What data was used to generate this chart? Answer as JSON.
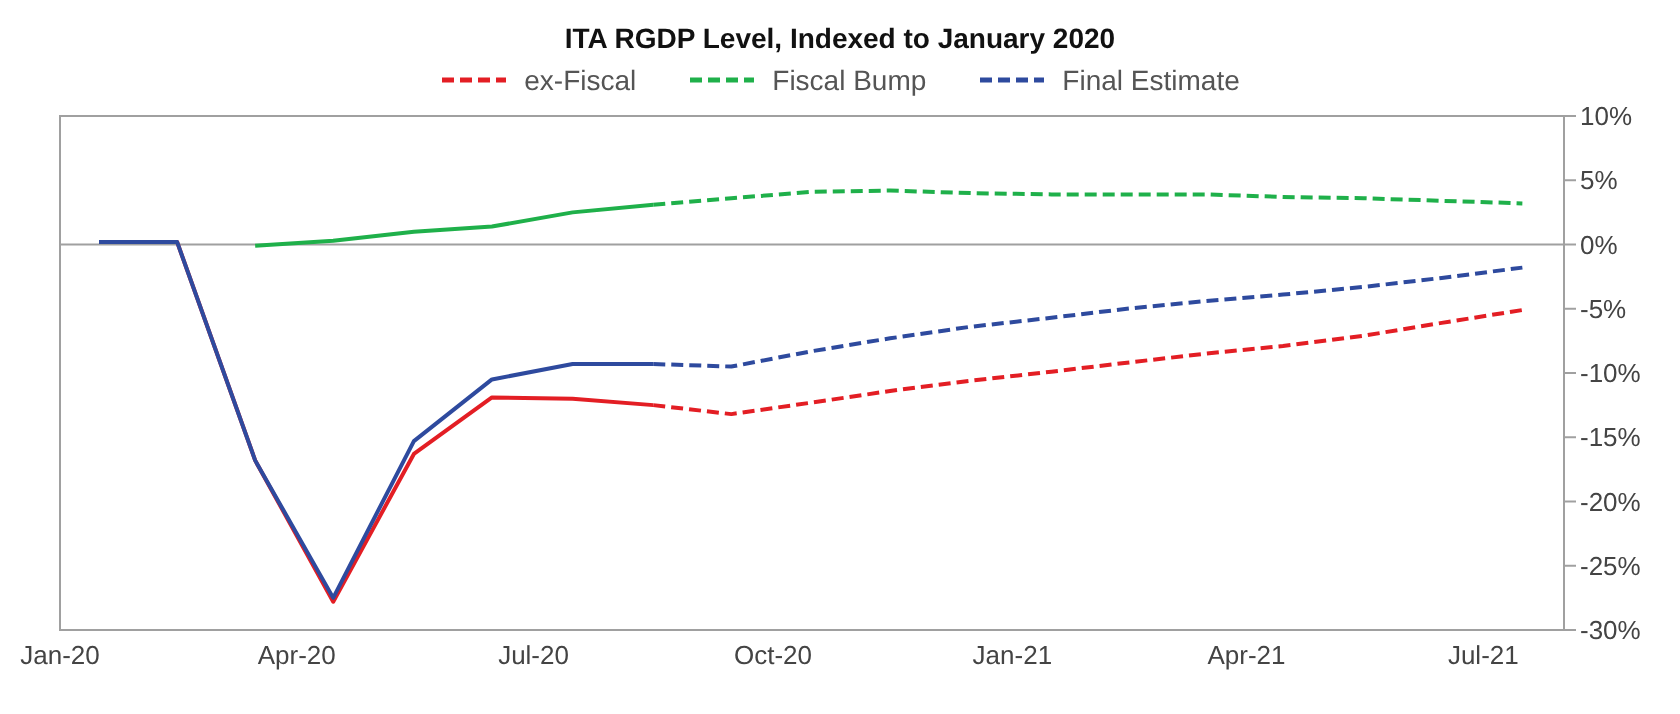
{
  "chart_data": {
    "type": "line",
    "title": "ITA RGDP Level, Indexed to January 2020",
    "x": [
      "2020-01-16",
      "2020-02-15",
      "2020-03-16",
      "2020-04-15",
      "2020-05-16",
      "2020-06-15",
      "2020-07-16",
      "2020-08-16",
      "2020-09-15",
      "2020-10-16",
      "2020-11-15",
      "2020-12-16",
      "2021-01-16",
      "2021-02-14",
      "2021-03-16",
      "2021-04-15",
      "2021-05-16",
      "2021-06-15",
      "2021-07-16"
    ],
    "xlim": [
      "2020-01-01",
      "2021-08-01"
    ],
    "xticks": [
      {
        "value": "2020-01-01",
        "label": "Jan-20"
      },
      {
        "value": "2020-04-01",
        "label": "Apr-20"
      },
      {
        "value": "2020-07-01",
        "label": "Jul-20"
      },
      {
        "value": "2020-10-01",
        "label": "Oct-20"
      },
      {
        "value": "2021-01-01",
        "label": "Jan-21"
      },
      {
        "value": "2021-04-01",
        "label": "Apr-21"
      },
      {
        "value": "2021-07-01",
        "label": "Jul-21"
      }
    ],
    "ylim": [
      -30,
      10
    ],
    "yticks": [
      {
        "value": -30,
        "label": "-30%"
      },
      {
        "value": -25,
        "label": "-25%"
      },
      {
        "value": -20,
        "label": "-20%"
      },
      {
        "value": -15,
        "label": "-15%"
      },
      {
        "value": -10,
        "label": "-10%"
      },
      {
        "value": -5,
        "label": "-5%"
      },
      {
        "value": 0,
        "label": "0%"
      },
      {
        "value": 5,
        "label": "5%"
      },
      {
        "value": 10,
        "label": "10%"
      }
    ],
    "series": [
      {
        "color": "#e31e24",
        "line_style": "solid",
        "values": [
          0.2,
          0.2,
          -16.8,
          -27.8,
          -16.3,
          -11.9,
          -12.0,
          -12.5,
          null,
          null,
          null,
          null,
          null,
          null,
          null,
          null,
          null,
          null,
          null
        ]
      },
      {
        "color": "#1fb04a",
        "line_style": "solid",
        "values": [
          null,
          null,
          -0.1,
          0.3,
          1.0,
          1.4,
          2.5,
          3.1,
          null,
          null,
          null,
          null,
          null,
          null,
          null,
          null,
          null,
          null,
          null
        ]
      },
      {
        "color": "#2e4a9e",
        "line_style": "solid",
        "values": [
          0.2,
          0.2,
          -16.8,
          -27.5,
          -15.3,
          -10.5,
          -9.3,
          -9.3,
          null,
          null,
          null,
          null,
          null,
          null,
          null,
          null,
          null,
          null,
          null
        ]
      },
      {
        "name": "ex-Fiscal",
        "color": "#e31e24",
        "line_style": "dashed",
        "values": [
          null,
          null,
          null,
          null,
          null,
          null,
          null,
          -12.5,
          -13.2,
          -12.3,
          -11.4,
          -10.6,
          -9.9,
          -9.2,
          -8.5,
          -7.9,
          -7.1,
          -6.1,
          -5.1
        ]
      },
      {
        "name": "Fiscal Bump",
        "color": "#1fb04a",
        "line_style": "dashed",
        "values": [
          null,
          null,
          null,
          null,
          null,
          null,
          null,
          3.1,
          3.6,
          4.1,
          4.2,
          4.0,
          3.9,
          3.9,
          3.9,
          3.7,
          3.6,
          3.4,
          3.2
        ]
      },
      {
        "name": "Final Estimate",
        "color": "#2e4a9e",
        "line_style": "dashed",
        "values": [
          null,
          null,
          null,
          null,
          null,
          null,
          null,
          -9.3,
          -9.5,
          -8.3,
          -7.3,
          -6.4,
          -5.7,
          -5.0,
          -4.4,
          -3.9,
          -3.3,
          -2.6,
          -1.8
        ]
      }
    ],
    "ref_lines": [
      {
        "axis": "y",
        "value": 0,
        "color": "#a0a0a0"
      }
    ],
    "legend": "top",
    "marker": "none"
  }
}
